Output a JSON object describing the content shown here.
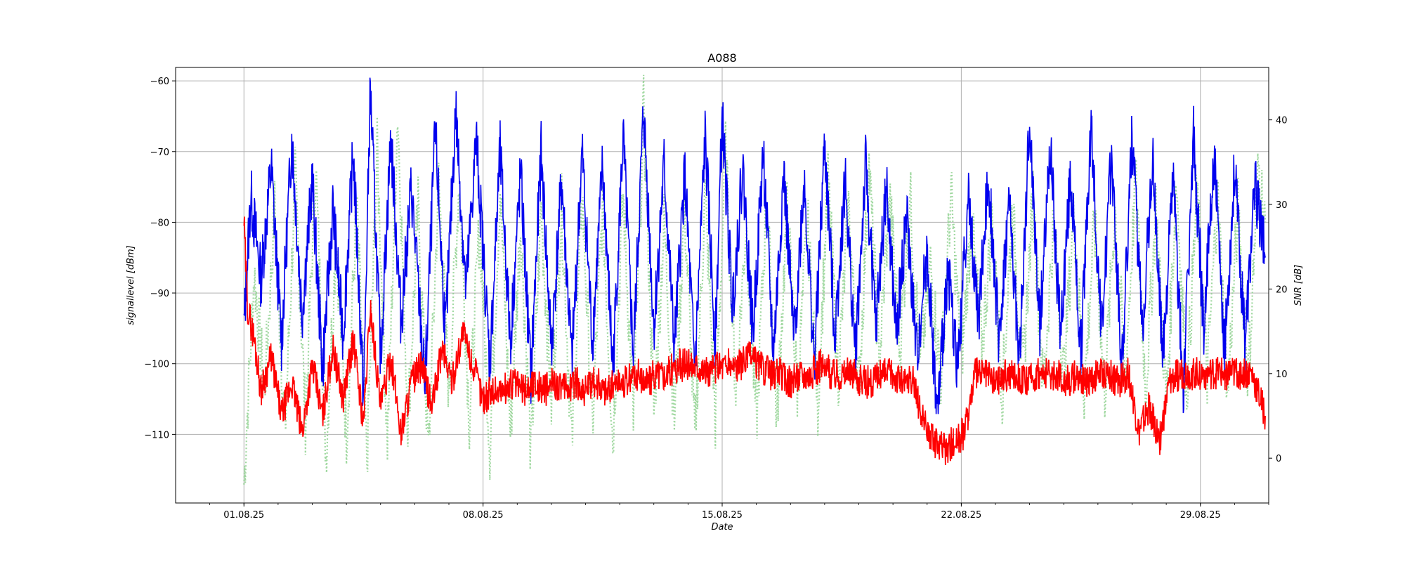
{
  "chart_data": {
    "type": "line",
    "title": "A088",
    "xlabel": "Date",
    "ylabel_left": "signallevel [dBm]",
    "ylabel_right": "SNR [dB]",
    "x_tick_labels": [
      "01.08.25",
      "08.08.25",
      "15.08.25",
      "22.08.25",
      "29.08.25"
    ],
    "x_range": [
      "2025-07-30",
      "2025-08-31"
    ],
    "ylim_left": [
      -119.7,
      -58.1
    ],
    "ylim_right": [
      -5.3,
      46.2
    ],
    "yticks_left": [
      -60,
      -70,
      -80,
      -90,
      -100,
      -110
    ],
    "yticks_right": [
      0,
      10,
      20,
      30,
      40
    ],
    "grid": true,
    "legend": "none",
    "colors": {
      "signallevel": "#0000ee",
      "snr": "#ff0000",
      "secondary_dotted": "#8fd18f",
      "grid": "#b0b0b0"
    },
    "series": [
      {
        "axis": "left",
        "style": "solid",
        "values_dBm": [
          [
            1,
            -95
          ],
          [
            1.2,
            -76
          ],
          [
            1.5,
            -88
          ],
          [
            1.8,
            -72
          ],
          [
            2.1,
            -97
          ],
          [
            2.4,
            -68
          ],
          [
            2.7,
            -93
          ],
          [
            3.0,
            -74
          ],
          [
            3.3,
            -101
          ],
          [
            3.6,
            -78
          ],
          [
            3.9,
            -96
          ],
          [
            4.2,
            -70
          ],
          [
            4.5,
            -105
          ],
          [
            4.7,
            -61
          ],
          [
            5.0,
            -99
          ],
          [
            5.3,
            -68
          ],
          [
            5.6,
            -94
          ],
          [
            5.9,
            -75
          ],
          [
            6.3,
            -103
          ],
          [
            6.6,
            -67
          ],
          [
            6.9,
            -96
          ],
          [
            7.2,
            -64
          ],
          [
            7.5,
            -90
          ],
          [
            7.8,
            -68
          ],
          [
            8.2,
            -100
          ],
          [
            8.5,
            -70
          ],
          [
            8.8,
            -97
          ],
          [
            9.1,
            -73
          ],
          [
            9.4,
            -102
          ],
          [
            9.7,
            -70
          ],
          [
            10.0,
            -98
          ],
          [
            10.3,
            -74
          ],
          [
            10.6,
            -100
          ],
          [
            10.9,
            -70
          ],
          [
            11.2,
            -97
          ],
          [
            11.5,
            -72
          ],
          [
            11.8,
            -101
          ],
          [
            12.1,
            -68
          ],
          [
            12.4,
            -99
          ],
          [
            12.7,
            -64
          ],
          [
            13.0,
            -95
          ],
          [
            13.3,
            -72
          ],
          [
            13.6,
            -98
          ],
          [
            13.9,
            -73
          ],
          [
            14.2,
            -101
          ],
          [
            14.5,
            -68
          ],
          [
            14.8,
            -97
          ],
          [
            15.0,
            -65
          ],
          [
            15.3,
            -92
          ],
          [
            15.6,
            -72
          ],
          [
            15.9,
            -96
          ],
          [
            16.2,
            -70
          ],
          [
            16.5,
            -99
          ],
          [
            16.8,
            -73
          ],
          [
            17.1,
            -97
          ],
          [
            17.4,
            -74
          ],
          [
            17.7,
            -100
          ],
          [
            18.0,
            -69
          ],
          [
            18.3,
            -96
          ],
          [
            18.6,
            -74
          ],
          [
            18.9,
            -99
          ],
          [
            19.2,
            -72
          ],
          [
            19.5,
            -95
          ],
          [
            19.8,
            -75
          ],
          [
            20.1,
            -96
          ],
          [
            20.4,
            -79
          ],
          [
            20.7,
            -99
          ],
          [
            21.0,
            -84
          ],
          [
            21.3,
            -108
          ],
          [
            21.6,
            -86
          ],
          [
            21.9,
            -101
          ],
          [
            22.2,
            -76
          ],
          [
            22.5,
            -94
          ],
          [
            22.8,
            -73
          ],
          [
            23.1,
            -97
          ],
          [
            23.4,
            -77
          ],
          [
            23.7,
            -100
          ],
          [
            24.0,
            -66
          ],
          [
            24.3,
            -95
          ],
          [
            24.6,
            -69
          ],
          [
            24.9,
            -96
          ],
          [
            25.2,
            -73
          ],
          [
            25.5,
            -99
          ],
          [
            25.8,
            -66
          ],
          [
            26.1,
            -96
          ],
          [
            26.4,
            -70
          ],
          [
            26.7,
            -101
          ],
          [
            27.0,
            -68
          ],
          [
            27.3,
            -95
          ],
          [
            27.6,
            -71
          ],
          [
            27.9,
            -99
          ],
          [
            28.2,
            -73
          ],
          [
            28.5,
            -104
          ],
          [
            28.8,
            -68
          ],
          [
            29.1,
            -95
          ],
          [
            29.4,
            -70
          ],
          [
            29.7,
            -99
          ],
          [
            30.0,
            -72
          ],
          [
            30.3,
            -97
          ],
          [
            30.6,
            -75
          ],
          [
            30.9,
            -85
          ]
        ]
      },
      {
        "axis": "right",
        "style": "solid",
        "values_dB": [
          [
            1,
            28
          ],
          [
            1.1,
            18
          ],
          [
            1.3,
            14
          ],
          [
            1.5,
            8
          ],
          [
            1.8,
            12
          ],
          [
            2.1,
            5
          ],
          [
            2.4,
            9
          ],
          [
            2.7,
            3
          ],
          [
            3.0,
            11
          ],
          [
            3.3,
            5
          ],
          [
            3.6,
            13
          ],
          [
            3.9,
            7
          ],
          [
            4.2,
            14
          ],
          [
            4.5,
            4
          ],
          [
            4.7,
            18
          ],
          [
            5.0,
            6
          ],
          [
            5.3,
            12
          ],
          [
            5.6,
            3
          ],
          [
            5.9,
            9
          ],
          [
            6.2,
            11
          ],
          [
            6.5,
            6
          ],
          [
            6.8,
            13
          ],
          [
            7.1,
            9
          ],
          [
            7.4,
            15
          ],
          [
            7.7,
            11
          ],
          [
            8.0,
            7
          ],
          [
            8.3,
            8
          ],
          [
            8.6,
            8
          ],
          [
            8.9,
            9
          ],
          [
            9.2,
            8
          ],
          [
            9.5,
            9
          ],
          [
            9.8,
            8
          ],
          [
            10.1,
            9
          ],
          [
            10.4,
            8
          ],
          [
            10.7,
            9
          ],
          [
            11.0,
            8
          ],
          [
            11.3,
            9
          ],
          [
            11.6,
            8
          ],
          [
            11.9,
            9
          ],
          [
            12.2,
            9
          ],
          [
            12.5,
            10
          ],
          [
            12.8,
            9
          ],
          [
            13.1,
            10
          ],
          [
            13.4,
            10
          ],
          [
            13.7,
            11
          ],
          [
            14.0,
            11
          ],
          [
            14.3,
            11
          ],
          [
            14.6,
            10
          ],
          [
            14.9,
            11
          ],
          [
            15.2,
            11
          ],
          [
            15.5,
            11
          ],
          [
            15.8,
            12
          ],
          [
            16.1,
            11
          ],
          [
            16.4,
            10
          ],
          [
            16.7,
            10
          ],
          [
            17.0,
            9
          ],
          [
            17.3,
            10
          ],
          [
            17.6,
            10
          ],
          [
            17.9,
            11
          ],
          [
            18.2,
            10
          ],
          [
            18.5,
            10
          ],
          [
            18.8,
            10
          ],
          [
            19.1,
            9
          ],
          [
            19.4,
            9
          ],
          [
            19.7,
            10
          ],
          [
            20.0,
            10
          ],
          [
            20.3,
            9
          ],
          [
            20.6,
            9
          ],
          [
            20.9,
            4
          ],
          [
            21.2,
            2
          ],
          [
            21.5,
            1
          ],
          [
            21.8,
            2
          ],
          [
            22.1,
            3
          ],
          [
            22.4,
            10
          ],
          [
            22.7,
            10
          ],
          [
            23.0,
            9
          ],
          [
            23.3,
            10
          ],
          [
            23.6,
            10
          ],
          [
            23.9,
            9
          ],
          [
            24.2,
            10
          ],
          [
            24.5,
            10
          ],
          [
            24.8,
            10
          ],
          [
            25.1,
            9
          ],
          [
            25.4,
            10
          ],
          [
            25.7,
            9
          ],
          [
            26.0,
            10
          ],
          [
            26.3,
            10
          ],
          [
            26.6,
            9
          ],
          [
            26.9,
            10
          ],
          [
            27.2,
            3
          ],
          [
            27.5,
            6
          ],
          [
            27.8,
            2
          ],
          [
            28.1,
            9
          ],
          [
            28.4,
            10
          ],
          [
            28.7,
            10
          ],
          [
            29.0,
            10
          ],
          [
            29.3,
            10
          ],
          [
            29.6,
            10
          ],
          [
            29.9,
            10
          ],
          [
            30.2,
            10
          ],
          [
            30.5,
            10
          ],
          [
            30.9,
            5
          ]
        ]
      },
      {
        "axis": "left",
        "style": "dotted",
        "values_dBm": [
          [
            1,
            -117
          ],
          [
            1.3,
            -87
          ],
          [
            1.6,
            -104
          ],
          [
            1.9,
            -78
          ],
          [
            2.2,
            -110
          ],
          [
            2.5,
            -74
          ],
          [
            2.8,
            -108
          ],
          [
            3.1,
            -72
          ],
          [
            3.4,
            -113
          ],
          [
            3.7,
            -82
          ],
          [
            4.0,
            -110
          ],
          [
            4.3,
            -78
          ],
          [
            4.6,
            -114
          ],
          [
            4.9,
            -70
          ],
          [
            5.2,
            -111
          ],
          [
            5.5,
            -64
          ],
          [
            5.8,
            -108
          ],
          [
            6.1,
            -78
          ],
          [
            6.4,
            -113
          ],
          [
            6.7,
            -74
          ],
          [
            7.0,
            -104
          ],
          [
            7.3,
            -74
          ],
          [
            7.6,
            -108
          ],
          [
            7.9,
            -80
          ],
          [
            8.2,
            -112
          ],
          [
            8.5,
            -75
          ],
          [
            8.8,
            -110
          ],
          [
            9.1,
            -80
          ],
          [
            9.4,
            -113
          ],
          [
            9.7,
            -78
          ],
          [
            10.0,
            -106
          ],
          [
            10.3,
            -78
          ],
          [
            10.6,
            -112
          ],
          [
            10.9,
            -76
          ],
          [
            11.2,
            -109
          ],
          [
            11.5,
            -78
          ],
          [
            11.8,
            -111
          ],
          [
            12.1,
            -76
          ],
          [
            12.4,
            -108
          ],
          [
            12.7,
            -64
          ],
          [
            13.0,
            -107
          ],
          [
            13.3,
            -80
          ],
          [
            13.6,
            -108
          ],
          [
            13.9,
            -78
          ],
          [
            14.2,
            -111
          ],
          [
            14.5,
            -76
          ],
          [
            14.8,
            -108
          ],
          [
            15.1,
            -70
          ],
          [
            15.4,
            -104
          ],
          [
            15.7,
            -80
          ],
          [
            16.0,
            -109
          ],
          [
            16.3,
            -76
          ],
          [
            16.6,
            -108
          ],
          [
            16.9,
            -78
          ],
          [
            17.2,
            -104
          ],
          [
            17.5,
            -80
          ],
          [
            17.8,
            -106
          ],
          [
            18.1,
            -74
          ],
          [
            18.4,
            -102
          ],
          [
            18.7,
            -78
          ],
          [
            19.0,
            -104
          ],
          [
            19.3,
            -72
          ],
          [
            19.6,
            -100
          ],
          [
            19.9,
            -76
          ],
          [
            20.2,
            -98
          ],
          [
            20.5,
            -76
          ],
          [
            20.8,
            -100
          ],
          [
            21.1,
            -86
          ],
          [
            21.4,
            -102
          ],
          [
            21.7,
            -76
          ],
          [
            22.0,
            -100
          ],
          [
            22.3,
            -80
          ],
          [
            22.6,
            -98
          ],
          [
            22.9,
            -80
          ],
          [
            23.2,
            -104
          ],
          [
            23.5,
            -78
          ],
          [
            23.8,
            -102
          ],
          [
            24.1,
            -76
          ],
          [
            24.4,
            -104
          ],
          [
            24.7,
            -80
          ],
          [
            25.0,
            -102
          ],
          [
            25.3,
            -78
          ],
          [
            25.6,
            -104
          ],
          [
            25.9,
            -80
          ],
          [
            26.2,
            -104
          ],
          [
            26.5,
            -78
          ],
          [
            26.8,
            -102
          ],
          [
            27.1,
            -74
          ],
          [
            27.4,
            -104
          ],
          [
            27.7,
            -78
          ],
          [
            28.0,
            -106
          ],
          [
            28.3,
            -74
          ],
          [
            28.6,
            -104
          ],
          [
            28.9,
            -76
          ],
          [
            29.2,
            -102
          ],
          [
            29.5,
            -76
          ],
          [
            29.8,
            -104
          ],
          [
            30.1,
            -78
          ],
          [
            30.4,
            -102
          ],
          [
            30.7,
            -72
          ],
          [
            30.9,
            -80
          ]
        ]
      }
    ]
  }
}
